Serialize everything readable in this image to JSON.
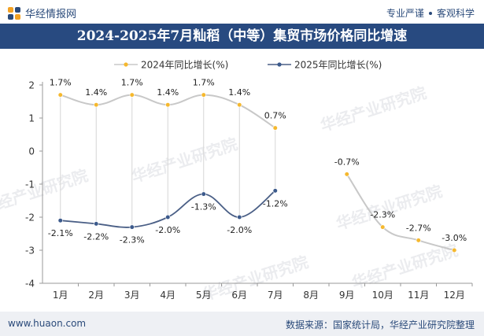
{
  "header": {
    "brand": "华经情报网",
    "tagline_left": "专业严谨",
    "tagline_right": "客观科学",
    "logo_icon": "huajing-logo-icon"
  },
  "title": "2024-2025年7月籼稻（中等）集贸市场价格同比增速",
  "footer": {
    "url": "www.huaon.com",
    "source": "数据来源：国家统计局，华经产业研究院整理"
  },
  "chart_data": {
    "type": "line",
    "categories": [
      "1月",
      "2月",
      "3月",
      "4月",
      "5月",
      "6月",
      "7月",
      "8月",
      "9月",
      "10月",
      "11月",
      "12月"
    ],
    "series": [
      {
        "name": "2024年同比增长(%)",
        "color": "#f5b82e",
        "line_color": "#c8c8c8",
        "values": [
          1.7,
          1.4,
          1.7,
          1.4,
          1.7,
          1.4,
          0.7,
          null,
          -0.7,
          -2.3,
          -2.7,
          -3.0
        ],
        "labels": [
          "1.7%",
          "1.4%",
          "1.7%",
          "1.4%",
          "1.7%",
          "1.4%",
          "0.7%",
          "",
          "-0.7%",
          "-2.3%",
          "-2.7%",
          "-3.0%"
        ]
      },
      {
        "name": "2025年同比增长(%)",
        "color": "#3c5a8c",
        "line_color": "#4a5f86",
        "values": [
          -2.1,
          -2.2,
          -2.3,
          -2.0,
          -1.3,
          -2.0,
          -1.2,
          null,
          null,
          null,
          null,
          null
        ],
        "labels": [
          "-2.1%",
          "-2.2%",
          "-2.3%",
          "-2.0%",
          "-1.3%",
          "-2.0%",
          "-1.2%",
          "",
          "",
          "",
          "",
          ""
        ]
      }
    ],
    "ylim": [
      -4,
      2
    ],
    "yticks": [
      -4,
      -3,
      -2,
      -1,
      0,
      1,
      2
    ],
    "ytick_labels": [
      "-4",
      "-3",
      "-2",
      "-1",
      "0",
      "1",
      "2"
    ],
    "legend_position": "top-center",
    "grid": false,
    "watermark": "华经产业研究院"
  }
}
